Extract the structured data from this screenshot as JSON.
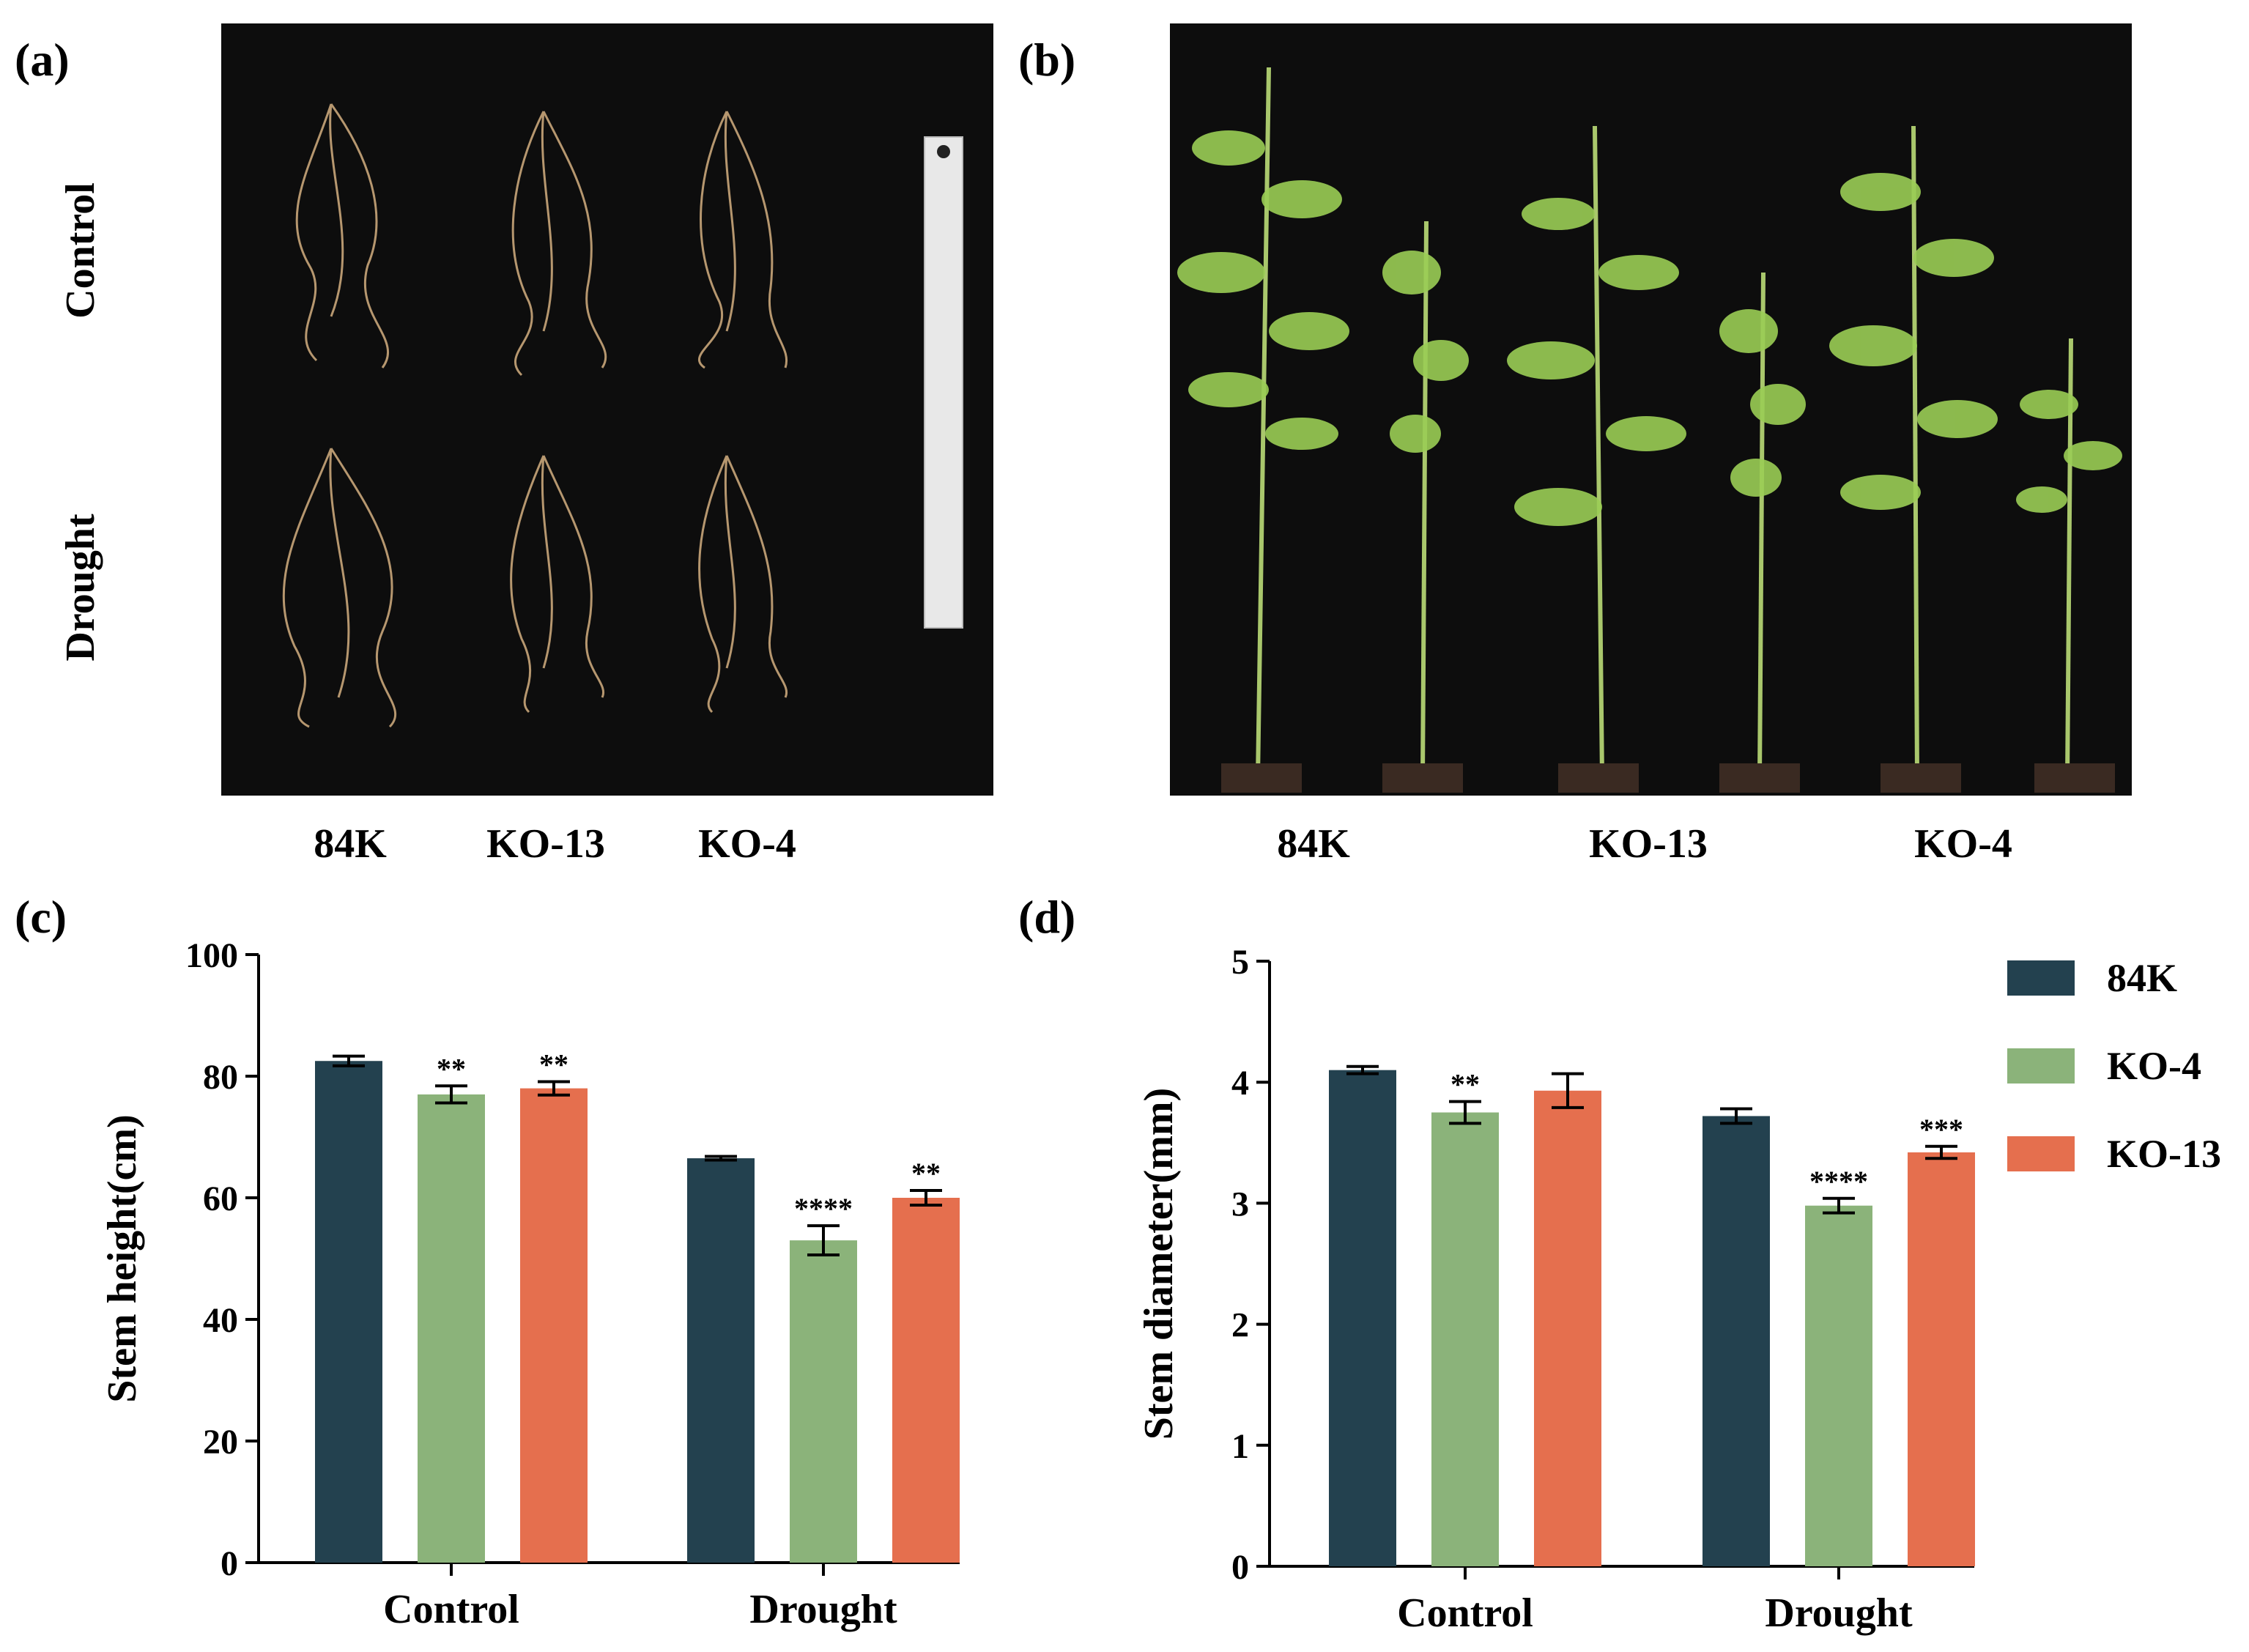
{
  "panels": {
    "a": {
      "label": "(a)",
      "row_labels": [
        "Control",
        "Drought"
      ],
      "col_labels": [
        "84K",
        "KO-13",
        "KO-4"
      ]
    },
    "b": {
      "label": "(b)",
      "col_labels": [
        "84K",
        "KO-13",
        "KO-4"
      ]
    },
    "c": {
      "label": "(c)"
    },
    "d": {
      "label": "(d)"
    }
  },
  "colors": {
    "84K": "#23414f",
    "KO-4": "#8bb37a",
    "KO-13": "#e56f4e",
    "photo_bg": "#0d0d0d",
    "root": "#c9a67a",
    "leaf": "#9acd55"
  },
  "legend": [
    "84K",
    "KO-4",
    "KO-13"
  ],
  "chart_data": [
    {
      "type": "bar",
      "panel": "c",
      "categories": [
        "Control",
        "Drought"
      ],
      "ylabel": "Stem height(cm)",
      "ylim": [
        0,
        100
      ],
      "yticks": [
        0,
        20,
        40,
        60,
        80,
        100
      ],
      "series": [
        {
          "name": "84K",
          "values": [
            82.5,
            66.5
          ],
          "errors": [
            0.8,
            0.3
          ],
          "sig": [
            "",
            ""
          ]
        },
        {
          "name": "KO-4",
          "values": [
            77.0,
            53.0
          ],
          "errors": [
            1.4,
            2.4
          ],
          "sig": [
            "**",
            "****"
          ]
        },
        {
          "name": "KO-13",
          "values": [
            78.0,
            60.0
          ],
          "errors": [
            1.1,
            1.2
          ],
          "sig": [
            "**",
            "**"
          ]
        }
      ]
    },
    {
      "type": "bar",
      "panel": "d",
      "categories": [
        "Control",
        "Drought"
      ],
      "ylabel": "Stem diameter(mm)",
      "ylim": [
        0,
        5
      ],
      "yticks": [
        0,
        1,
        2,
        3,
        4,
        5
      ],
      "series": [
        {
          "name": "84K",
          "values": [
            4.1,
            3.72
          ],
          "errors": [
            0.03,
            0.06
          ],
          "sig": [
            "",
            ""
          ]
        },
        {
          "name": "KO-4",
          "values": [
            3.75,
            2.98
          ],
          "errors": [
            0.09,
            0.06
          ],
          "sig": [
            "**",
            "****"
          ]
        },
        {
          "name": "KO-13",
          "values": [
            3.93,
            3.42
          ],
          "errors": [
            0.14,
            0.05
          ],
          "sig": [
            "",
            "***"
          ]
        }
      ]
    }
  ]
}
